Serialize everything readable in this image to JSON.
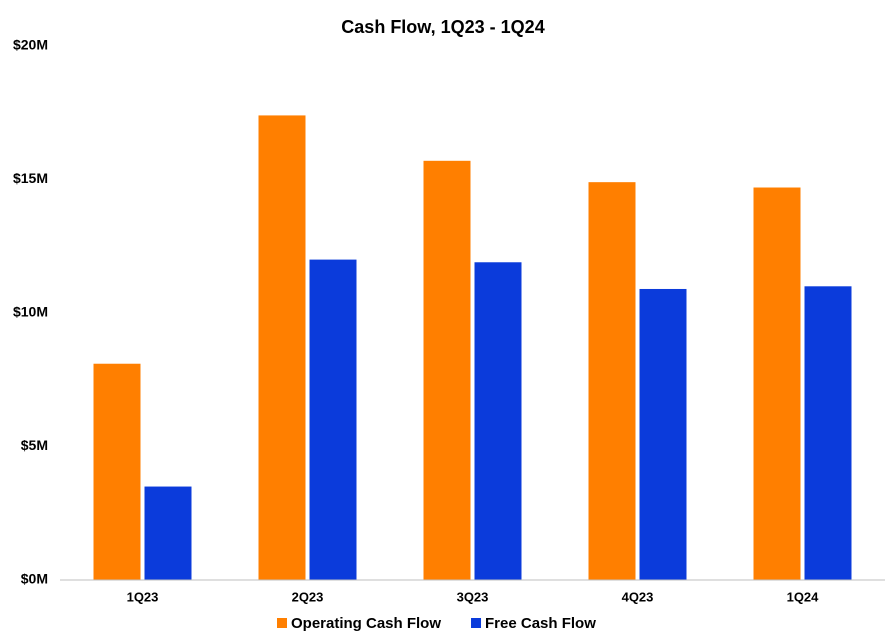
{
  "chart_data": {
    "type": "bar",
    "title": "Cash Flow, 1Q23 - 1Q24",
    "categories": [
      "1Q23",
      "2Q23",
      "3Q23",
      "4Q23",
      "1Q24"
    ],
    "series": [
      {
        "name": "Operating Cash Flow",
        "color": "#ff7f00",
        "values": [
          8.1,
          17.4,
          15.7,
          14.9,
          14.7
        ]
      },
      {
        "name": "Free Cash Flow",
        "color": "#0b3bdb",
        "values": [
          3.5,
          12.0,
          11.9,
          10.9,
          11.0
        ]
      }
    ],
    "ylim": [
      0,
      20
    ],
    "yticks": [
      {
        "value": 0,
        "label": "$0M"
      },
      {
        "value": 5,
        "label": "$5M"
      },
      {
        "value": 10,
        "label": "$10M"
      },
      {
        "value": 15,
        "label": "$15M"
      },
      {
        "value": 20,
        "label": "$20M"
      }
    ],
    "grid": false,
    "legend": "bottom"
  }
}
